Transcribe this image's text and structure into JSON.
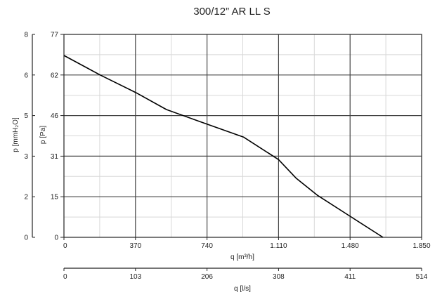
{
  "chart_data": {
    "type": "line",
    "title": "300/12” AR LL S",
    "xlabel": "q [m³/h]",
    "ylabel": "p [Pa]",
    "xlim": [
      0,
      1850
    ],
    "ylim": [
      0,
      77
    ],
    "x_ticks": [
      "0",
      "370",
      "740",
      "1.110",
      "1.480",
      "1.850"
    ],
    "y_ticks": [
      "0",
      "15",
      "31",
      "46",
      "62",
      "77"
    ],
    "secondary_y": {
      "label": "p [mmH₂O]",
      "ylim": [
        0,
        8
      ],
      "ticks": [
        "0",
        "2",
        "3",
        "5",
        "6",
        "8"
      ]
    },
    "secondary_x": {
      "label": "q [l/s]",
      "xlim": [
        0,
        514
      ],
      "ticks": [
        "0",
        "103",
        "206",
        "308",
        "411",
        "514"
      ]
    },
    "grid": true,
    "series": [
      {
        "x": [
          0,
          190,
          370,
          530,
          700,
          930,
          1110,
          1200,
          1310,
          1480,
          1650
        ],
        "y": [
          69,
          61.5,
          55,
          48.5,
          44,
          38,
          29.5,
          22.5,
          16,
          8,
          0
        ]
      }
    ],
    "colors": {
      "line": "#000000",
      "grid_major": "#444444",
      "grid_minor": "#d8d8d8"
    }
  }
}
